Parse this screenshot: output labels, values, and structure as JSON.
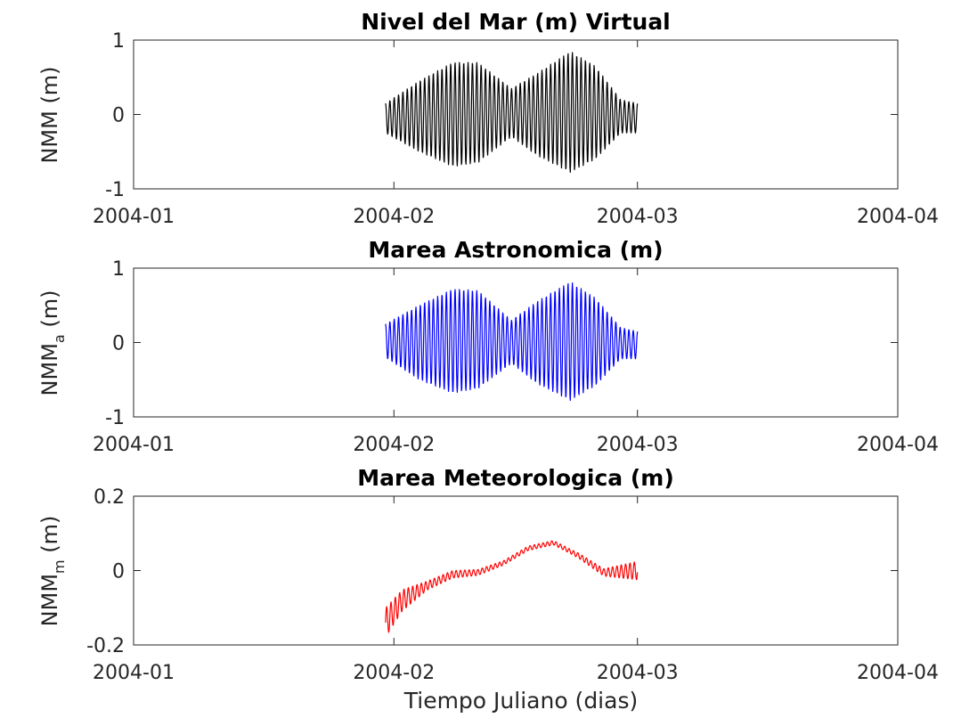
{
  "chart_data": [
    {
      "type": "line",
      "title": "Nivel del Mar (m) Virtual",
      "ylabel": "NMM (m)",
      "ylabel_parts": {
        "main": "NMM",
        "sub": "",
        "unit": " (m)"
      },
      "xlabel": "",
      "xlim": [
        "2004-01-01",
        "2004-04-01"
      ],
      "ylim": [
        -1,
        1
      ],
      "xticks": [
        "2004-01-01",
        "2004-02-01",
        "2004-03-01",
        "2004-04-01"
      ],
      "xticklabels": [
        "2004-01",
        "2004-02",
        "2004-03",
        "2004-04"
      ],
      "yticks": [
        -1,
        0,
        1
      ],
      "yticklabels": [
        "-1",
        "0",
        "1"
      ],
      "grid": false,
      "series": [
        {
          "color": "#000000",
          "x_start": "2004-01-31",
          "x_end": "2004-03-01",
          "sample_interval_hours": 1,
          "values_note": "hourly oscillation; envelope listed below",
          "envelope": {
            "x": [
              "2004-01-31",
              "2004-02-04",
              "2004-02-08",
              "2004-02-11",
              "2004-02-15",
              "2004-02-18",
              "2004-02-22",
              "2004-02-25",
              "2004-02-28",
              "2004-03-01"
            ],
            "upper": [
              0.15,
              0.45,
              0.7,
              0.7,
              0.35,
              0.55,
              0.85,
              0.65,
              0.2,
              0.15
            ],
            "lower": [
              -0.25,
              -0.5,
              -0.7,
              -0.65,
              -0.3,
              -0.55,
              -0.78,
              -0.6,
              -0.25,
              -0.25
            ]
          }
        }
      ]
    },
    {
      "type": "line",
      "title": "Marea Astronomica (m)",
      "ylabel": "NMMa (m)",
      "ylabel_parts": {
        "main": "NMM",
        "sub": "a",
        "unit": " (m)"
      },
      "xlabel": "",
      "xlim": [
        "2004-01-01",
        "2004-04-01"
      ],
      "ylim": [
        -1,
        1
      ],
      "xticks": [
        "2004-01-01",
        "2004-02-01",
        "2004-03-01",
        "2004-04-01"
      ],
      "xticklabels": [
        "2004-01",
        "2004-02",
        "2004-03",
        "2004-04"
      ],
      "yticks": [
        -1,
        0,
        1
      ],
      "yticklabels": [
        "-1",
        "0",
        "1"
      ],
      "grid": false,
      "series": [
        {
          "color": "#0000ff",
          "x_start": "2004-01-31",
          "x_end": "2004-03-01",
          "sample_interval_hours": 1,
          "envelope": {
            "x": [
              "2004-01-31",
              "2004-02-04",
              "2004-02-08",
              "2004-02-11",
              "2004-02-15",
              "2004-02-18",
              "2004-02-22",
              "2004-02-25",
              "2004-02-28",
              "2004-03-01"
            ],
            "upper": [
              0.25,
              0.5,
              0.72,
              0.7,
              0.3,
              0.55,
              0.82,
              0.6,
              0.2,
              0.15
            ],
            "lower": [
              -0.2,
              -0.5,
              -0.68,
              -0.62,
              -0.28,
              -0.55,
              -0.78,
              -0.58,
              -0.22,
              -0.22
            ]
          }
        }
      ]
    },
    {
      "type": "line",
      "title": "Marea Meteorologica (m)",
      "ylabel": "NMMm (m)",
      "ylabel_parts": {
        "main": "NMM",
        "sub": "m",
        "unit": " (m)"
      },
      "xlabel": "Tiempo Juliano (dias)",
      "xlim": [
        "2004-01-01",
        "2004-04-01"
      ],
      "ylim": [
        -0.2,
        0.2
      ],
      "xticks": [
        "2004-01-01",
        "2004-02-01",
        "2004-03-01",
        "2004-04-01"
      ],
      "xticklabels": [
        "2004-01",
        "2004-02",
        "2004-03",
        "2004-04"
      ],
      "yticks": [
        -0.2,
        0,
        0.2
      ],
      "yticklabels": [
        "-0.2",
        "0",
        "0.2"
      ],
      "grid": false,
      "series": [
        {
          "color": "#ff0000",
          "x_start": "2004-01-31",
          "x_end": "2004-03-01",
          "sample_interval_hours": 1,
          "trend": {
            "x": [
              "2004-01-31",
              "2004-02-02",
              "2004-02-05",
              "2004-02-08",
              "2004-02-11",
              "2004-02-14",
              "2004-02-17",
              "2004-02-20",
              "2004-02-23",
              "2004-02-26",
              "2004-03-01"
            ],
            "y": [
              -0.14,
              -0.08,
              -0.04,
              -0.01,
              -0.005,
              0.02,
              0.06,
              0.075,
              0.04,
              -0.005,
              0.0
            ]
          },
          "ripple_amplitude": {
            "x": [
              "2004-01-31",
              "2004-02-05",
              "2004-02-14",
              "2004-02-22",
              "2004-02-26",
              "2004-03-01"
            ],
            "y": [
              0.04,
              0.012,
              0.006,
              0.006,
              0.01,
              0.025
            ]
          }
        }
      ]
    }
  ]
}
